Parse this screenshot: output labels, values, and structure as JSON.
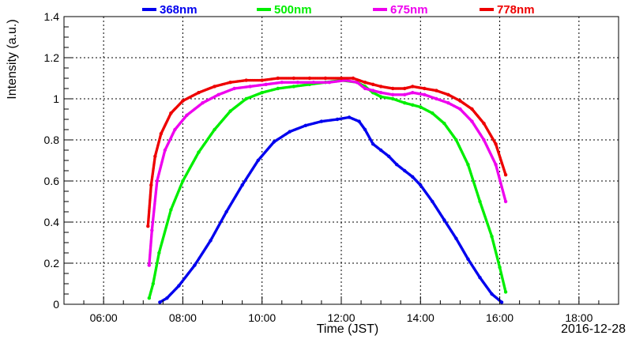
{
  "chart_data": {
    "type": "scatter",
    "xlabel": "Time (JST)",
    "ylabel": "Intensity (a.u.)",
    "date_label": "2016-12-28",
    "x_ticks": [
      "06:00",
      "08:00",
      "10:00",
      "12:00",
      "14:00",
      "16:00",
      "18:00"
    ],
    "x_tick_hours": [
      6,
      8,
      10,
      12,
      14,
      16,
      18
    ],
    "xlim_hours": [
      5.0,
      19.0
    ],
    "ylim": [
      0,
      1.4
    ],
    "y_ticks": [
      "0",
      "0.2",
      "0.4",
      "0.6",
      "0.8",
      "1",
      "1.2",
      "1.4"
    ],
    "y_tick_values": [
      0,
      0.2,
      0.4,
      0.6,
      0.8,
      1.0,
      1.2,
      1.4
    ],
    "grid": true,
    "legend_position": "top",
    "series": [
      {
        "name": "368nm",
        "color": "#0000ee",
        "x": [
          7.42,
          7.6,
          7.9,
          8.3,
          8.7,
          9.1,
          9.5,
          9.9,
          10.3,
          10.7,
          11.1,
          11.5,
          11.9,
          12.2,
          12.45,
          12.6,
          12.8,
          13.0,
          13.2,
          13.4,
          13.6,
          13.8,
          14.0,
          14.3,
          14.6,
          14.9,
          15.2,
          15.5,
          15.8,
          16.05
        ],
        "y": [
          0.01,
          0.03,
          0.09,
          0.19,
          0.31,
          0.45,
          0.58,
          0.7,
          0.79,
          0.84,
          0.87,
          0.89,
          0.9,
          0.91,
          0.89,
          0.85,
          0.78,
          0.75,
          0.72,
          0.68,
          0.65,
          0.62,
          0.58,
          0.5,
          0.41,
          0.32,
          0.22,
          0.13,
          0.05,
          0.01
        ]
      },
      {
        "name": "500nm",
        "color": "#00ee00",
        "x": [
          7.15,
          7.25,
          7.4,
          7.7,
          8.0,
          8.4,
          8.8,
          9.2,
          9.6,
          10.0,
          10.4,
          10.8,
          11.2,
          11.6,
          12.0,
          12.4,
          12.6,
          12.8,
          13.0,
          13.3,
          13.6,
          13.8,
          14.0,
          14.3,
          14.6,
          14.9,
          15.2,
          15.5,
          15.8,
          16.0,
          16.15
        ],
        "y": [
          0.03,
          0.1,
          0.25,
          0.46,
          0.6,
          0.74,
          0.85,
          0.94,
          1.0,
          1.03,
          1.05,
          1.06,
          1.07,
          1.08,
          1.09,
          1.08,
          1.06,
          1.03,
          1.01,
          1.0,
          0.98,
          0.97,
          0.96,
          0.93,
          0.88,
          0.8,
          0.68,
          0.5,
          0.33,
          0.18,
          0.06
        ]
      },
      {
        "name": "675nm",
        "color": "#ee00ee",
        "x": [
          7.15,
          7.22,
          7.35,
          7.55,
          7.8,
          8.1,
          8.5,
          8.9,
          9.3,
          9.7,
          10.1,
          10.5,
          10.9,
          11.3,
          11.7,
          12.1,
          12.4,
          12.6,
          12.8,
          13.0,
          13.3,
          13.6,
          13.8,
          14.1,
          14.4,
          14.7,
          15.0,
          15.3,
          15.6,
          15.9,
          16.15
        ],
        "y": [
          0.19,
          0.36,
          0.6,
          0.75,
          0.85,
          0.92,
          0.98,
          1.02,
          1.05,
          1.06,
          1.07,
          1.08,
          1.08,
          1.08,
          1.08,
          1.09,
          1.08,
          1.05,
          1.04,
          1.03,
          1.02,
          1.02,
          1.03,
          1.02,
          1.0,
          0.98,
          0.95,
          0.89,
          0.8,
          0.68,
          0.5
        ]
      },
      {
        "name": "778nm",
        "color": "#ee0000",
        "x": [
          7.12,
          7.2,
          7.3,
          7.45,
          7.7,
          8.0,
          8.4,
          8.8,
          9.2,
          9.6,
          10.0,
          10.4,
          10.8,
          11.2,
          11.6,
          12.0,
          12.3,
          12.6,
          12.8,
          13.0,
          13.3,
          13.6,
          13.8,
          14.1,
          14.4,
          14.7,
          15.0,
          15.3,
          15.6,
          15.9,
          16.15
        ],
        "y": [
          0.38,
          0.58,
          0.72,
          0.83,
          0.93,
          0.99,
          1.03,
          1.06,
          1.08,
          1.09,
          1.09,
          1.1,
          1.1,
          1.1,
          1.1,
          1.1,
          1.1,
          1.08,
          1.07,
          1.06,
          1.05,
          1.05,
          1.06,
          1.05,
          1.04,
          1.02,
          0.99,
          0.95,
          0.88,
          0.78,
          0.63
        ]
      }
    ]
  }
}
